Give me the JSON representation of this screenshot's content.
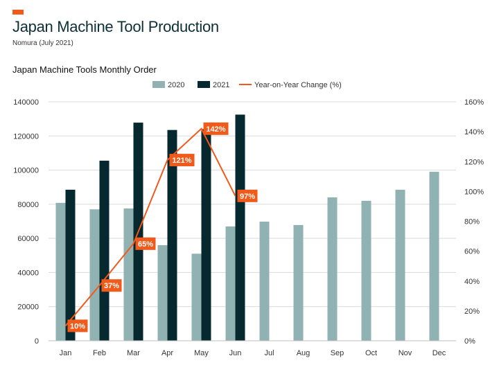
{
  "page": {
    "title": "Japan Machine Tool Production",
    "source": "Nomura (July 2021)",
    "accent_color": "#f05a1a"
  },
  "chart_data": {
    "type": "bar",
    "title": "Japan Machine Tools Monthly Order",
    "categories": [
      "Jan",
      "Feb",
      "Mar",
      "Apr",
      "May",
      "Jun",
      "Jul",
      "Aug",
      "Sep",
      "Oct",
      "Nov",
      "Dec"
    ],
    "series": [
      {
        "name": "2020",
        "type": "bar",
        "color": "#91b2b3",
        "values": [
          80800,
          77000,
          77500,
          56000,
          51000,
          67000,
          69800,
          67800,
          84000,
          82000,
          88500,
          99000
        ]
      },
      {
        "name": "2021",
        "type": "bar",
        "color": "#06282f",
        "values": [
          88500,
          105500,
          127800,
          123500,
          124000,
          132500,
          null,
          null,
          null,
          null,
          null,
          null
        ]
      },
      {
        "name": "Year-on-Year Change (%)",
        "type": "line",
        "axis": "right",
        "color": "#f05a1a",
        "values": [
          10,
          37,
          65,
          121,
          142,
          97,
          null,
          null,
          null,
          null,
          null,
          null
        ],
        "labels": [
          "10%",
          "37%",
          "65%",
          "121%",
          "142%",
          "97%",
          "",
          "",
          "",
          "",
          "",
          ""
        ]
      }
    ],
    "y_left": {
      "min": 0,
      "max": 140000,
      "ticks": [
        "0",
        "20000",
        "40000",
        "60000",
        "80000",
        "100000",
        "120000",
        "140000"
      ]
    },
    "y_right": {
      "min": 0,
      "max": 160,
      "ticks": [
        "0%",
        "20%",
        "40%",
        "60%",
        "80%",
        "100%",
        "120%",
        "140%",
        "160%"
      ]
    },
    "grid": true,
    "legend_position": "top-center"
  }
}
